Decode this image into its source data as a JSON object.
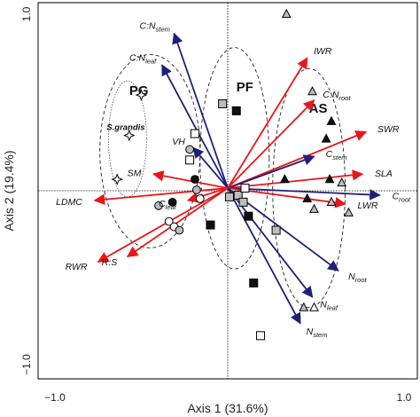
{
  "chart_data": {
    "type": "scatter",
    "subtype": "pca-biplot",
    "xlabel": "Axis 1 (31.6%)",
    "ylabel": "Axis 2 (19.4%)",
    "xlim": [
      -1.0,
      1.0
    ],
    "ylim": [
      -1.0,
      1.0
    ],
    "x_ticks": [
      -1.0,
      1.0
    ],
    "y_ticks": [
      -1.0,
      1.0
    ],
    "x_tick_labels": [
      "−1.0",
      "1.0"
    ],
    "y_tick_labels": [
      "−1.0",
      "1.0"
    ],
    "grid": false,
    "colors": {
      "blue_vector": "#1f1f7a",
      "red_vector": "#e8161b",
      "filled_marker": "#111111",
      "gray_marker": "#bdbdbd"
    },
    "vectors": [
      {
        "label": "C:N",
        "sub": "stem",
        "color": "blue",
        "x": -0.31,
        "y": 0.88
      },
      {
        "label": "C:N",
        "sub": "leaf",
        "color": "blue",
        "x": -0.38,
        "y": 0.7
      },
      {
        "label": "IWR",
        "sub": "",
        "color": "red",
        "x": 0.46,
        "y": 0.74
      },
      {
        "label": "C:N",
        "sub": "root",
        "color": "red",
        "x": 0.5,
        "y": 0.5
      },
      {
        "label": "SWR",
        "sub": "",
        "color": "red",
        "x": 0.8,
        "y": 0.32
      },
      {
        "label": "C",
        "sub": "stem",
        "color": "blue",
        "x": 0.5,
        "y": 0.18
      },
      {
        "label": "SLA",
        "sub": "",
        "color": "red",
        "x": 0.78,
        "y": 0.08
      },
      {
        "label": "C",
        "sub": "root",
        "color": "blue",
        "x": 0.88,
        "y": -0.04
      },
      {
        "label": "LWR",
        "sub": "",
        "color": "red",
        "x": 0.68,
        "y": -0.09
      },
      {
        "label": "N",
        "sub": "root",
        "color": "blue",
        "x": 0.64,
        "y": -0.47
      },
      {
        "label": "N",
        "sub": "leaf",
        "color": "blue",
        "x": 0.49,
        "y": -0.62
      },
      {
        "label": "N",
        "sub": "stem",
        "color": "blue",
        "x": 0.42,
        "y": -0.77
      },
      {
        "label": "VH",
        "sub": "",
        "color": "blue",
        "x": -0.2,
        "y": 0.23
      },
      {
        "label": "SM",
        "sub": "",
        "color": "red",
        "x": -0.43,
        "y": 0.08
      },
      {
        "label": "LDMC",
        "sub": "",
        "color": "red",
        "x": -0.77,
        "y": -0.07
      },
      {
        "label": "C",
        "sub": "leaf",
        "color": "red",
        "x": -0.23,
        "y": -0.07
      },
      {
        "label": "R:S",
        "sub": "",
        "color": "red",
        "x": -0.58,
        "y": -0.39
      },
      {
        "label": "RWR",
        "sub": "",
        "color": "red",
        "x": -0.75,
        "y": -0.42
      }
    ],
    "points": [
      {
        "series": "PG",
        "marker": "star",
        "x": -0.5,
        "y": 0.53
      },
      {
        "series": "PG",
        "marker": "star",
        "x": -0.57,
        "y": 0.3
      },
      {
        "series": "PG",
        "marker": "star",
        "x": -0.64,
        "y": 0.05
      },
      {
        "series": "PG-circles",
        "marker": "circle-gray",
        "x": -0.22,
        "y": 0.22
      },
      {
        "series": "PG-circles",
        "marker": "circle-black",
        "x": -0.19,
        "y": 0.05
      },
      {
        "series": "PG-circles",
        "marker": "circle-gray",
        "x": -0.18,
        "y": -0.01
      },
      {
        "series": "PG-circles",
        "marker": "circle-black",
        "x": -0.32,
        "y": -0.08
      },
      {
        "series": "PG-circles",
        "marker": "circle-gray",
        "x": -0.4,
        "y": -0.1
      },
      {
        "series": "PG-circles",
        "marker": "circle-white",
        "x": -0.34,
        "y": -0.19
      },
      {
        "series": "PG-circles",
        "marker": "circle-white",
        "x": -0.31,
        "y": -0.22
      },
      {
        "series": "PG-circles",
        "marker": "circle-gray",
        "x": -0.28,
        "y": -0.24
      },
      {
        "series": "PG-circles",
        "marker": "circle-white",
        "x": -0.16,
        "y": -0.06
      },
      {
        "series": "PF",
        "marker": "square-gray",
        "x": -0.03,
        "y": 0.48
      },
      {
        "series": "PF",
        "marker": "square-black",
        "x": 0.05,
        "y": 0.44
      },
      {
        "series": "PF",
        "marker": "square-white",
        "x": -0.19,
        "y": 0.31
      },
      {
        "series": "PF",
        "marker": "square-white",
        "x": -0.22,
        "y": 0.16
      },
      {
        "series": "PF",
        "marker": "square-black",
        "x": -0.1,
        "y": -0.21
      },
      {
        "series": "PF",
        "marker": "square-gray",
        "x": 0.01,
        "y": -0.05
      },
      {
        "series": "PF",
        "marker": "square-gray",
        "x": 0.06,
        "y": -0.04
      },
      {
        "series": "PF",
        "marker": "square-white",
        "x": 0.1,
        "y": 0.0
      },
      {
        "series": "PF",
        "marker": "square-gray",
        "x": 0.09,
        "y": -0.08
      },
      {
        "series": "PF",
        "marker": "square-black",
        "x": 0.15,
        "y": -0.54
      },
      {
        "series": "PF",
        "marker": "square-white",
        "x": 0.19,
        "y": -0.84
      },
      {
        "series": "PF",
        "marker": "square-gray",
        "x": 0.28,
        "y": -0.24
      },
      {
        "series": "PF",
        "marker": "square-black",
        "x": 0.12,
        "y": -0.16
      },
      {
        "series": "AS",
        "marker": "tri-gray",
        "x": 0.34,
        "y": 0.99
      },
      {
        "series": "AS",
        "marker": "tri-gray",
        "x": 0.49,
        "y": 0.55
      },
      {
        "series": "AS",
        "marker": "tri-black",
        "x": 0.6,
        "y": 0.38
      },
      {
        "series": "AS",
        "marker": "tri-black",
        "x": 0.57,
        "y": 0.28
      },
      {
        "series": "AS",
        "marker": "tri-black",
        "x": 0.33,
        "y": 0.05
      },
      {
        "series": "AS",
        "marker": "tri-black",
        "x": 0.59,
        "y": 0.05
      },
      {
        "series": "AS",
        "marker": "tri-gray",
        "x": 0.66,
        "y": 0.03
      },
      {
        "series": "AS",
        "marker": "tri-black",
        "x": 0.46,
        "y": -0.06
      },
      {
        "series": "AS",
        "marker": "tri-gray",
        "x": 0.5,
        "y": -0.12
      },
      {
        "series": "AS",
        "marker": "tri-gray",
        "x": 0.7,
        "y": -0.14
      },
      {
        "series": "AS",
        "marker": "tri-gray",
        "x": 0.6,
        "y": -0.08
      },
      {
        "series": "AS",
        "marker": "tri-gray",
        "x": 0.44,
        "y": -0.68
      },
      {
        "series": "AS",
        "marker": "tri-white",
        "x": 0.5,
        "y": -0.68
      }
    ],
    "groups": [
      {
        "label": "PG",
        "sub": "S.grandis",
        "lx": -0.57,
        "ly": 0.53,
        "cx": -0.45,
        "cy": 0.21,
        "rx": 0.29,
        "ry": 0.55,
        "inner": {
          "cx": -0.58,
          "cy": 0.28,
          "rx": 0.11,
          "ry": 0.33
        }
      },
      {
        "label": "PF",
        "sub": "",
        "lx": 0.05,
        "ly": 0.55,
        "cx": 0.04,
        "cy": 0.17,
        "rx": 0.2,
        "ry": 0.63
      },
      {
        "label": "AS",
        "sub": "",
        "lx": 0.47,
        "ly": 0.43,
        "cx": 0.47,
        "cy": 0.0,
        "rx": 0.21,
        "ry": 0.68
      }
    ]
  }
}
